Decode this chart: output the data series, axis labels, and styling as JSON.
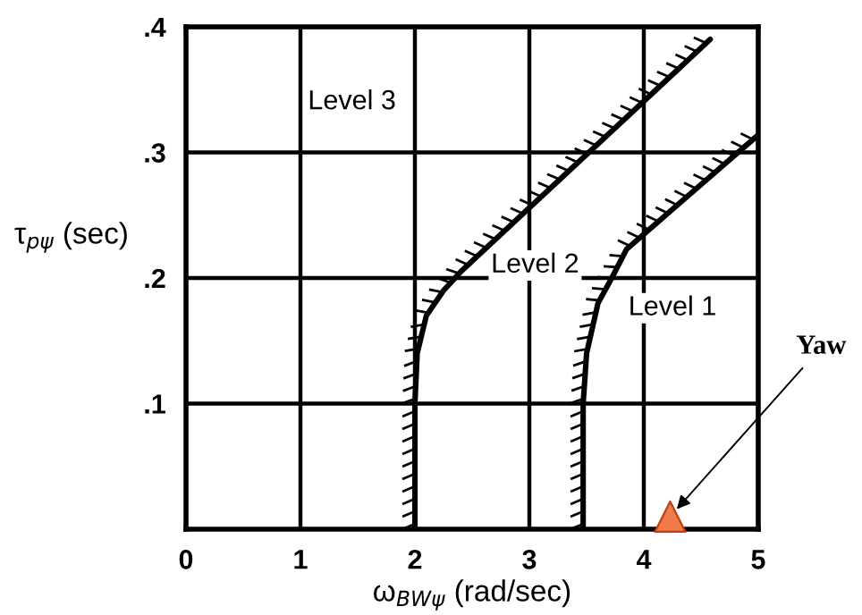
{
  "chart_data": {
    "type": "line",
    "xlabel": "ω$_{BWψ}$ (rad/sec)",
    "ylabel": "τ$_{pψ}$ (sec)",
    "series": [
      {
        "color": "#000000",
        "marker": "none",
        "x": [
          2,
          2,
          2.02,
          2.1,
          2.25,
          2.4,
          4.58
        ],
        "values": [
          0,
          0.1,
          0.14,
          0.17,
          0.19,
          0.205,
          0.39
        ]
      },
      {
        "color": "#000000",
        "marker": "none",
        "x": [
          3.47,
          3.47,
          3.5,
          3.6,
          3.72,
          3.85,
          5
        ],
        "values": [
          0,
          0.1,
          0.14,
          0.18,
          0.2,
          0.223,
          0.314
        ]
      },
      {
        "type": "scatter",
        "color": "#f07a4a",
        "marker": "triangle",
        "x": [
          4.23
        ],
        "values": [
          0.01
        ]
      }
    ],
    "annotations": [
      "Level 3",
      "Level 2",
      "Level 1",
      {
        "text": "Yaw",
        "x": 4.23,
        "y": 0.01
      }
    ],
    "xlim": [
      0,
      5
    ],
    "ylim": [
      0,
      0.4
    ],
    "xticks": [
      0,
      1,
      2,
      3,
      4,
      5
    ],
    "yticks": [
      {
        "value": 0.1,
        "label": ".1"
      },
      {
        "value": 0.2,
        "label": ".2"
      },
      {
        "value": 0.3,
        "label": ".3"
      },
      {
        "value": 0.4,
        "label": ".4"
      }
    ],
    "grid": true,
    "legend": false,
    "line_style": "solid"
  }
}
